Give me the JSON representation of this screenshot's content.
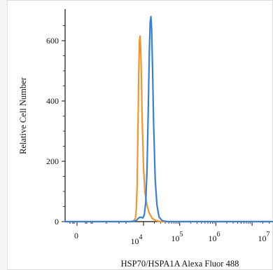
{
  "chart_data": {
    "type": "line",
    "title": "",
    "xlabel": "HSP70/HSPA1A Alexa Fluor 488",
    "ylabel": "Relative Cell Number",
    "x_scale": "biexponential",
    "x_ticks": [
      {
        "base": "0",
        "exp": ""
      },
      {
        "base": "10",
        "exp": "4"
      },
      {
        "base": "10",
        "exp": "5"
      },
      {
        "base": "10",
        "exp": "6"
      },
      {
        "base": "10",
        "exp": "7"
      }
    ],
    "y_ticks": [
      "0",
      "200",
      "400",
      "600"
    ],
    "ylim": [
      0,
      700
    ],
    "grid": false,
    "series": [
      {
        "color": "#f0962e",
        "points": [
          [
            3400,
            0
          ],
          [
            4500,
            2
          ],
          [
            5200,
            10
          ],
          [
            5600,
            40
          ],
          [
            6000,
            120
          ],
          [
            6400,
            300
          ],
          [
            6800,
            480
          ],
          [
            7200,
            600
          ],
          [
            7600,
            615
          ],
          [
            8000,
            575
          ],
          [
            8500,
            470
          ],
          [
            9000,
            340
          ],
          [
            10000,
            180
          ],
          [
            11000,
            95
          ],
          [
            12500,
            55
          ],
          [
            14000,
            32
          ],
          [
            17000,
            12
          ],
          [
            22000,
            3
          ],
          [
            30000,
            0
          ]
        ]
      },
      {
        "color": "#3a7fd5",
        "points": [
          [
            4000,
            0
          ],
          [
            5500,
            3
          ],
          [
            6500,
            10
          ],
          [
            7500,
            15
          ],
          [
            8500,
            14
          ],
          [
            9500,
            12
          ],
          [
            10500,
            22
          ],
          [
            11500,
            60
          ],
          [
            12500,
            170
          ],
          [
            13500,
            360
          ],
          [
            14500,
            560
          ],
          [
            15300,
            660
          ],
          [
            16000,
            680
          ],
          [
            16800,
            640
          ],
          [
            17700,
            520
          ],
          [
            19000,
            330
          ],
          [
            21000,
            140
          ],
          [
            23500,
            55
          ],
          [
            27000,
            15
          ],
          [
            33000,
            3
          ],
          [
            45000,
            0
          ]
        ]
      }
    ]
  }
}
